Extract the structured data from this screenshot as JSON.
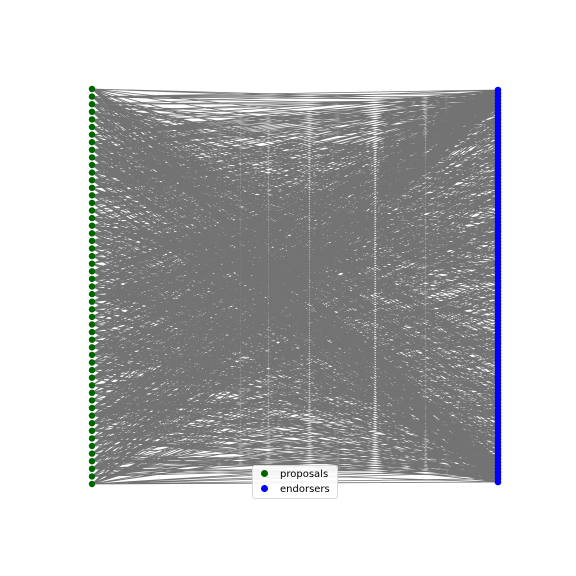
{
  "figure": {
    "kind": "bipartite network",
    "edge_color": "#000000",
    "background": "#ffffff"
  },
  "left_nodes": {
    "label": "proposals",
    "color": "#006400",
    "count": 53
  },
  "right_nodes": {
    "label": "endorsers",
    "color": "#0000ff",
    "count": 120
  },
  "legend": {
    "entries": [
      {
        "label": "proposals",
        "color": "#006400"
      },
      {
        "label": "endorsers",
        "color": "#0000ff"
      }
    ]
  }
}
